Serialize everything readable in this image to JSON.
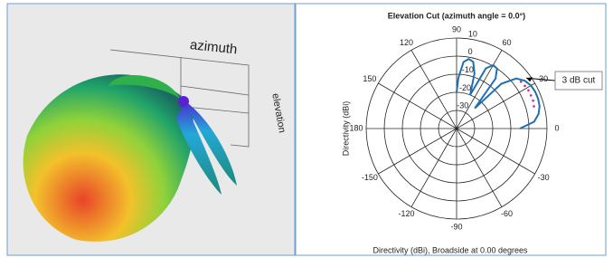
{
  "left_panel": {
    "axis_labels": [
      "azimuth",
      "elevation"
    ]
  },
  "chart_data": {
    "type": "polar",
    "title": "Elevation Cut (azimuth angle = 0.0°)",
    "radial_label": "Directivity (dBi)",
    "bottom_label": "Directivity (dBi), Broadside at 0.00 degrees",
    "rlim": [
      -40,
      10
    ],
    "rticks": [
      -30,
      -20,
      -10,
      0,
      10
    ],
    "thetaticks": [
      0,
      30,
      60,
      90,
      120,
      150,
      180,
      -150,
      -120,
      -90,
      -60,
      -30
    ],
    "series": [
      {
        "color": "#1f6fb4",
        "theta": [
          0,
          5,
          10,
          15,
          20,
          25,
          30,
          35,
          40,
          45,
          48,
          52,
          56,
          60,
          64,
          68,
          72,
          76,
          80,
          84,
          88,
          90
        ],
        "r": [
          -5,
          3,
          6,
          7.5,
          8,
          8,
          7.5,
          6,
          3,
          -5,
          -25,
          -5,
          0,
          0.5,
          -3,
          -20,
          -8,
          -2,
          -1,
          -3,
          -12,
          -20
        ]
      }
    ],
    "annotation": {
      "text": "3 dB cut",
      "color": "#e0208a",
      "theta": [
        16,
        20,
        24,
        28,
        32,
        36
      ],
      "r": [
        4.5,
        5,
        5,
        5,
        4.5,
        4
      ]
    }
  }
}
